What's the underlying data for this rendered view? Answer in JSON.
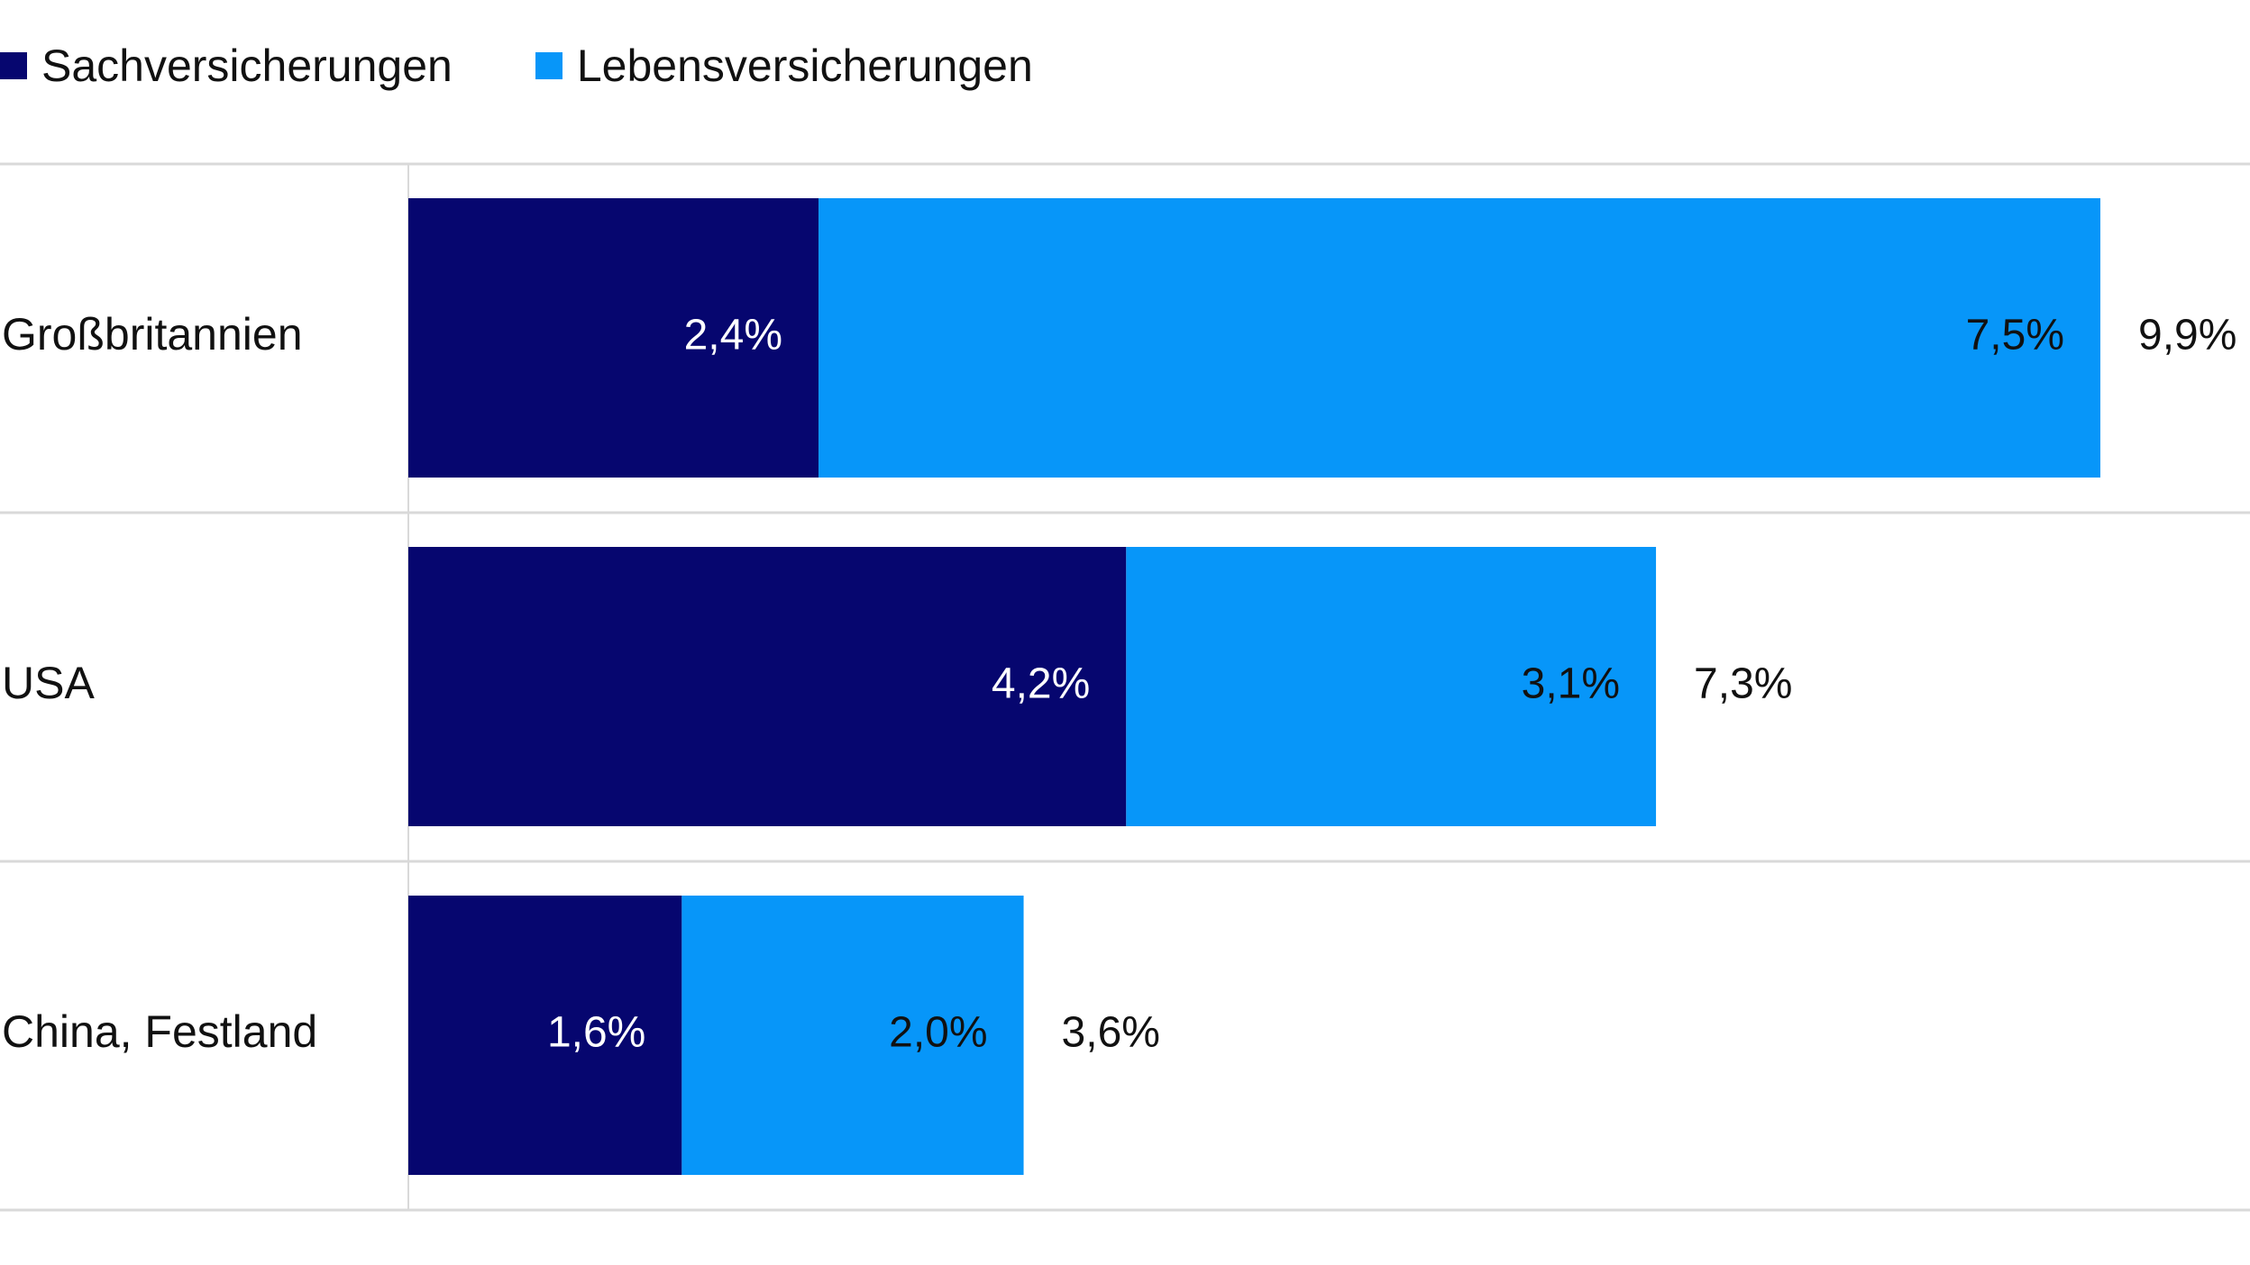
{
  "legend": {
    "items": [
      {
        "label": "Sachversicherungen",
        "color": "#06066f"
      },
      {
        "label": "Lebensversicherungen",
        "color": "#0796f9"
      }
    ]
  },
  "chart_data": {
    "type": "bar",
    "orientation": "horizontal",
    "stacked": true,
    "categories": [
      "Großbritannien",
      "USA",
      "China, Festland"
    ],
    "series": [
      {
        "name": "Sachversicherungen",
        "values": [
          2.4,
          4.2,
          1.6
        ],
        "labels": [
          "2,4%",
          "4,2%",
          "1,6%"
        ],
        "color": "#06066f"
      },
      {
        "name": "Lebensversicherungen",
        "values": [
          7.5,
          3.1,
          2.0
        ],
        "labels": [
          "7,5%",
          "3,1%",
          "2,0%"
        ],
        "color": "#0796f9"
      }
    ],
    "totals": [
      9.9,
      7.3,
      3.6
    ],
    "total_labels": [
      "9,9%",
      "7,3%",
      "3,6%"
    ],
    "xlim": [
      0,
      9.9
    ],
    "legend_position": "top-left",
    "grid": false
  }
}
